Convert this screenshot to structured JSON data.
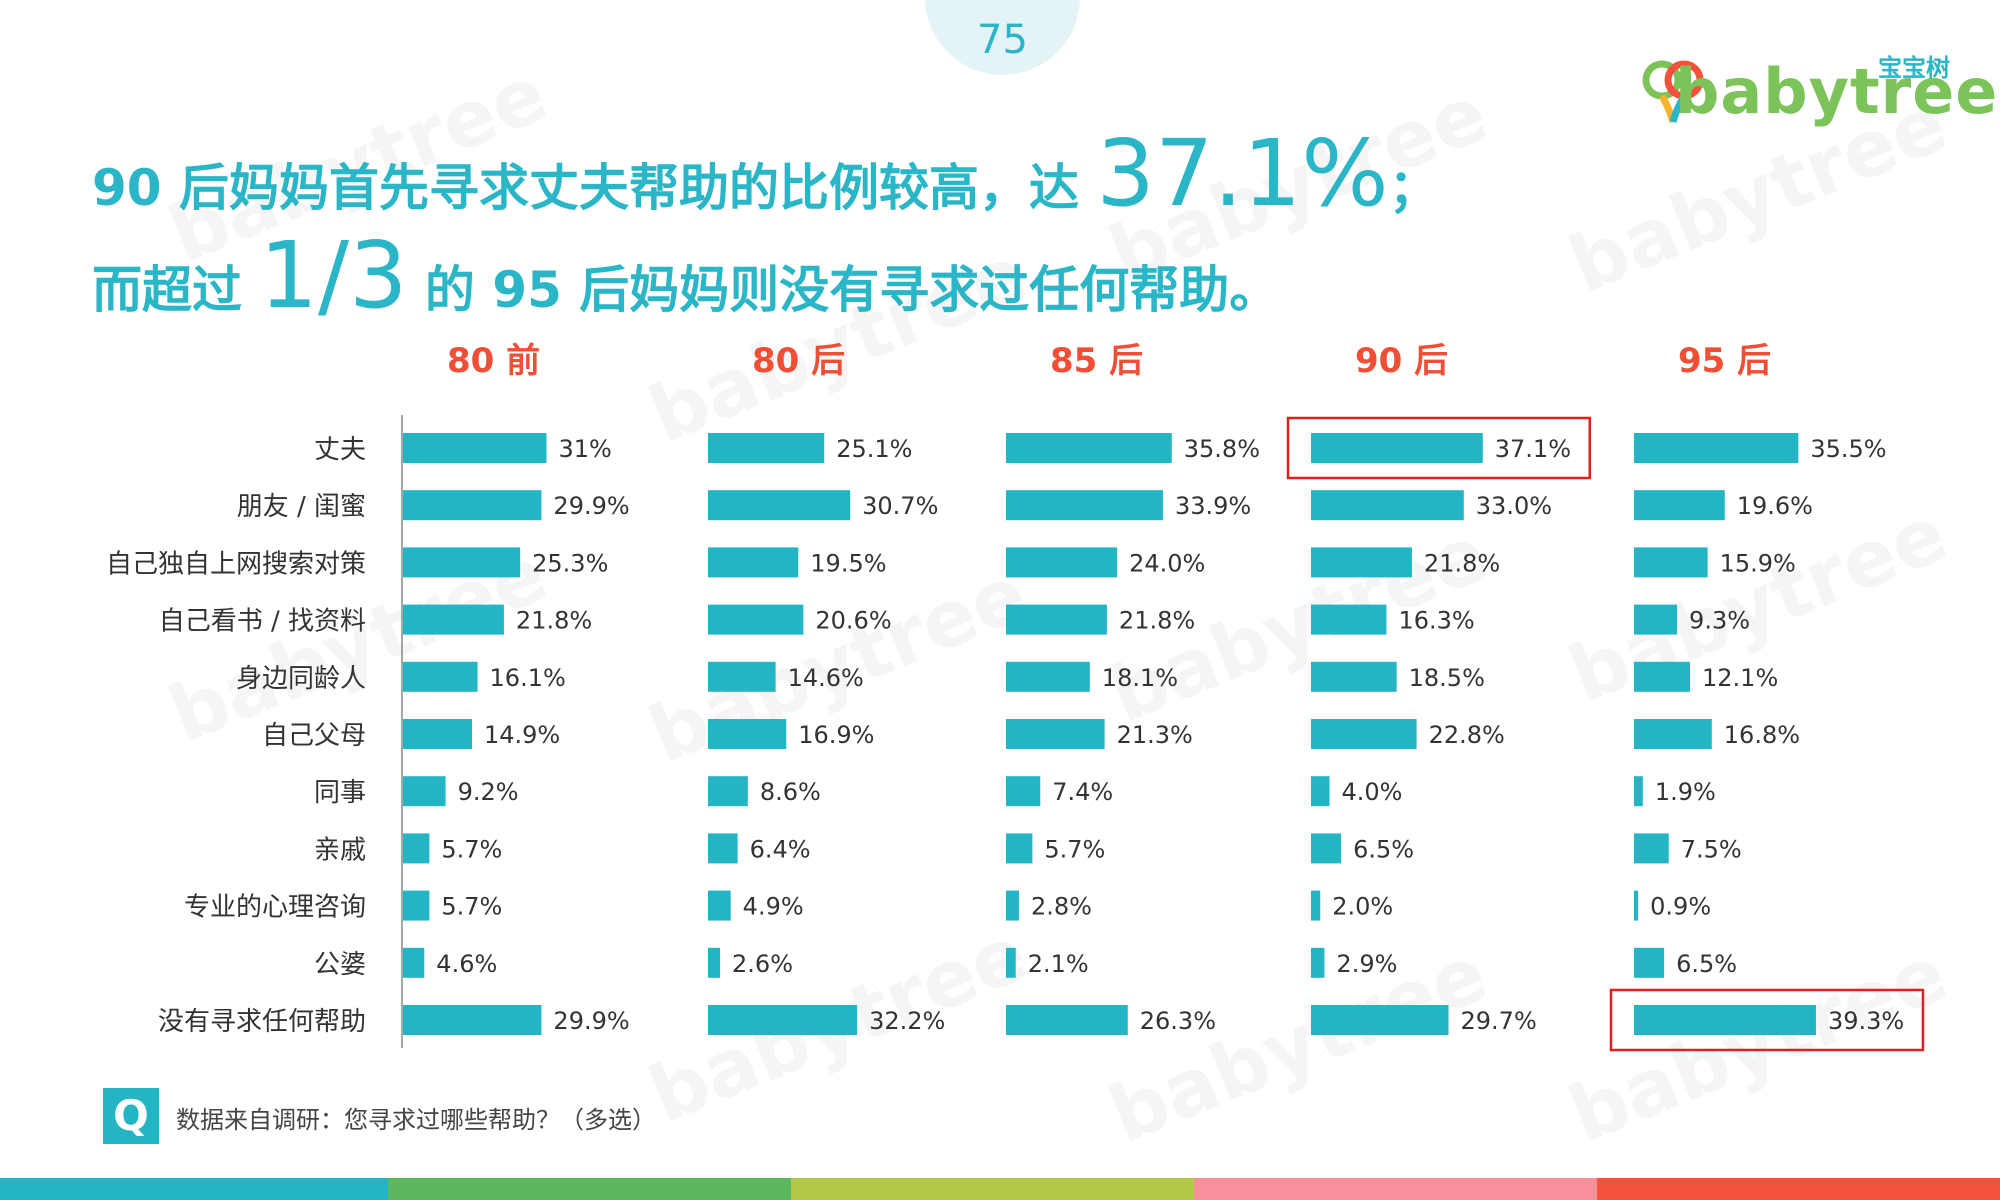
{
  "page_number": "75",
  "logo": {
    "name": "babytree",
    "cn": "宝宝树"
  },
  "headline": {
    "line1_pre": "90 后妈妈首先寻求丈夫帮助的比例较高，达 ",
    "line1_big": "37.1%",
    "line1_post": "；",
    "line2_pre": "而超过 ",
    "line2_big": "1/3",
    "line2_post": " 的 95 后妈妈则没有寻求过任何帮助。"
  },
  "footer": {
    "q_icon": "Q",
    "note": "数据来自调研：您寻求过哪些帮助？（多选）"
  },
  "watermark": "babytree",
  "colors": {
    "accent": "#2ab6c6",
    "bar": "#23b5c4",
    "group_title": "#f04e35",
    "highlight": "#e02020",
    "stripe": [
      "#23b5c4",
      "#5cb85c",
      "#b5c84a",
      "#f7909a",
      "#f4523b"
    ]
  },
  "chart_data": {
    "type": "bar",
    "orientation": "horizontal",
    "categories": [
      "丈夫",
      "朋友 / 闺蜜",
      "自己独自上网搜索对策",
      "自己看书 / 找资料",
      "身边同龄人",
      "自己父母",
      "同事",
      "亲戚",
      "专业的心理咨询",
      "公婆",
      "没有寻求任何帮助"
    ],
    "series": [
      {
        "name": "80 前",
        "values": [
          31,
          29.9,
          25.3,
          21.8,
          16.1,
          14.9,
          9.2,
          5.7,
          5.7,
          4.6,
          29.9
        ],
        "labels": [
          "31%",
          "29.9%",
          "25.3%",
          "21.8%",
          "16.1%",
          "14.9%",
          "9.2%",
          "5.7%",
          "5.7%",
          "4.6%",
          "29.9%"
        ]
      },
      {
        "name": "80 后",
        "values": [
          25.1,
          30.7,
          19.5,
          20.6,
          14.6,
          16.9,
          8.6,
          6.4,
          4.9,
          2.6,
          32.2
        ],
        "labels": [
          "25.1%",
          "30.7%",
          "19.5%",
          "20.6%",
          "14.6%",
          "16.9%",
          "8.6%",
          "6.4%",
          "4.9%",
          "2.6%",
          "32.2%"
        ]
      },
      {
        "name": "85 后",
        "values": [
          35.8,
          33.9,
          24.0,
          21.8,
          18.1,
          21.3,
          7.4,
          5.7,
          2.8,
          2.1,
          26.3
        ],
        "labels": [
          "35.8%",
          "33.9%",
          "24.0%",
          "21.8%",
          "18.1%",
          "21.3%",
          "7.4%",
          "5.7%",
          "2.8%",
          "2.1%",
          "26.3%"
        ]
      },
      {
        "name": "90 后",
        "values": [
          37.1,
          33.0,
          21.8,
          16.3,
          18.5,
          22.8,
          4.0,
          6.5,
          2.0,
          2.9,
          29.7
        ],
        "labels": [
          "37.1%",
          "33.0%",
          "21.8%",
          "16.3%",
          "18.5%",
          "22.8%",
          "4.0%",
          "6.5%",
          "2.0%",
          "2.9%",
          "29.7%"
        ]
      },
      {
        "name": "95 后",
        "values": [
          35.5,
          19.6,
          15.9,
          9.3,
          12.1,
          16.8,
          1.9,
          7.5,
          0.9,
          6.5,
          39.3
        ],
        "labels": [
          "35.5%",
          "19.6%",
          "15.9%",
          "9.3%",
          "12.1%",
          "16.8%",
          "1.9%",
          "7.5%",
          "0.9%",
          "6.5%",
          "39.3%"
        ]
      }
    ],
    "highlights": [
      {
        "series": "90 后",
        "category": "丈夫"
      },
      {
        "series": "95 后",
        "category": "没有寻求任何帮助"
      }
    ],
    "unit": "%",
    "grid": false,
    "legend": "none"
  }
}
